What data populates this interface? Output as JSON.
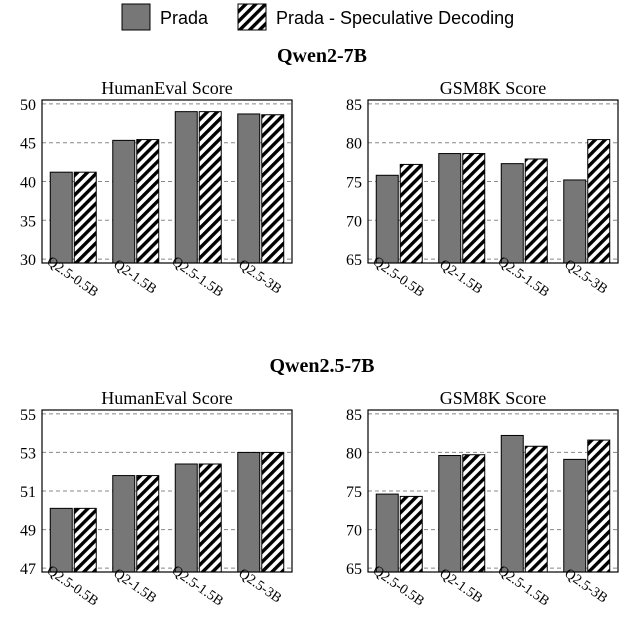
{
  "legend": {
    "items": [
      {
        "label": "Prada",
        "style": "solid"
      },
      {
        "label": "Prada - Speculative Decoding",
        "style": "hatched"
      }
    ]
  },
  "colors": {
    "solid_fill": "#777777",
    "hatch_stroke": "#000000",
    "frame": "#000000",
    "grid": "#888888"
  },
  "chart_data": [
    {
      "type": "bar",
      "group_title": "Qwen2-7B",
      "title": "HumanEval Score",
      "categories": [
        "Q2.5-0.5B",
        "Q2-1.5B",
        "Q2.5-1.5B",
        "Q2.5-3B"
      ],
      "series": [
        {
          "name": "Prada",
          "values": [
            41.2,
            45.3,
            49.0,
            48.7
          ]
        },
        {
          "name": "Prada - Speculative Decoding",
          "values": [
            41.2,
            45.4,
            49.0,
            48.6
          ]
        }
      ],
      "ylim": [
        29.5,
        50.5
      ],
      "yticks": [
        30,
        35,
        40,
        45,
        50
      ],
      "grid": true
    },
    {
      "type": "bar",
      "group_title": "Qwen2-7B",
      "title": "GSM8K Score",
      "categories": [
        "Q2.5-0.5B",
        "Q2-1.5B",
        "Q2.5-1.5B",
        "Q2.5-3B"
      ],
      "series": [
        {
          "name": "Prada",
          "values": [
            75.8,
            78.6,
            77.3,
            75.2
          ]
        },
        {
          "name": "Prada - Speculative Decoding",
          "values": [
            77.2,
            78.6,
            77.9,
            80.4
          ]
        }
      ],
      "ylim": [
        64.5,
        85.5
      ],
      "yticks": [
        65,
        70,
        75,
        80,
        85
      ],
      "grid": true
    },
    {
      "type": "bar",
      "group_title": "Qwen2.5-7B",
      "title": "HumanEval Score",
      "categories": [
        "Q2.5-0.5B",
        "Q2-1.5B",
        "Q2.5-1.5B",
        "Q2.5-3B"
      ],
      "series": [
        {
          "name": "Prada",
          "values": [
            50.1,
            51.8,
            52.4,
            53.0
          ]
        },
        {
          "name": "Prada - Speculative Decoding",
          "values": [
            50.1,
            51.8,
            52.4,
            53.0
          ]
        }
      ],
      "ylim": [
        46.8,
        55.2
      ],
      "yticks": [
        47,
        49,
        51,
        53,
        55
      ],
      "grid": true
    },
    {
      "type": "bar",
      "group_title": "Qwen2.5-7B",
      "title": "GSM8K Score",
      "categories": [
        "Q2.5-0.5B",
        "Q2-1.5B",
        "Q2.5-1.5B",
        "Q2.5-3B"
      ],
      "series": [
        {
          "name": "Prada",
          "values": [
            74.6,
            79.6,
            82.2,
            79.1
          ]
        },
        {
          "name": "Prada - Speculative Decoding",
          "values": [
            74.3,
            79.7,
            80.8,
            81.6
          ]
        }
      ],
      "ylim": [
        64.5,
        85.5
      ],
      "yticks": [
        65,
        70,
        75,
        80,
        85
      ],
      "grid": true
    }
  ]
}
